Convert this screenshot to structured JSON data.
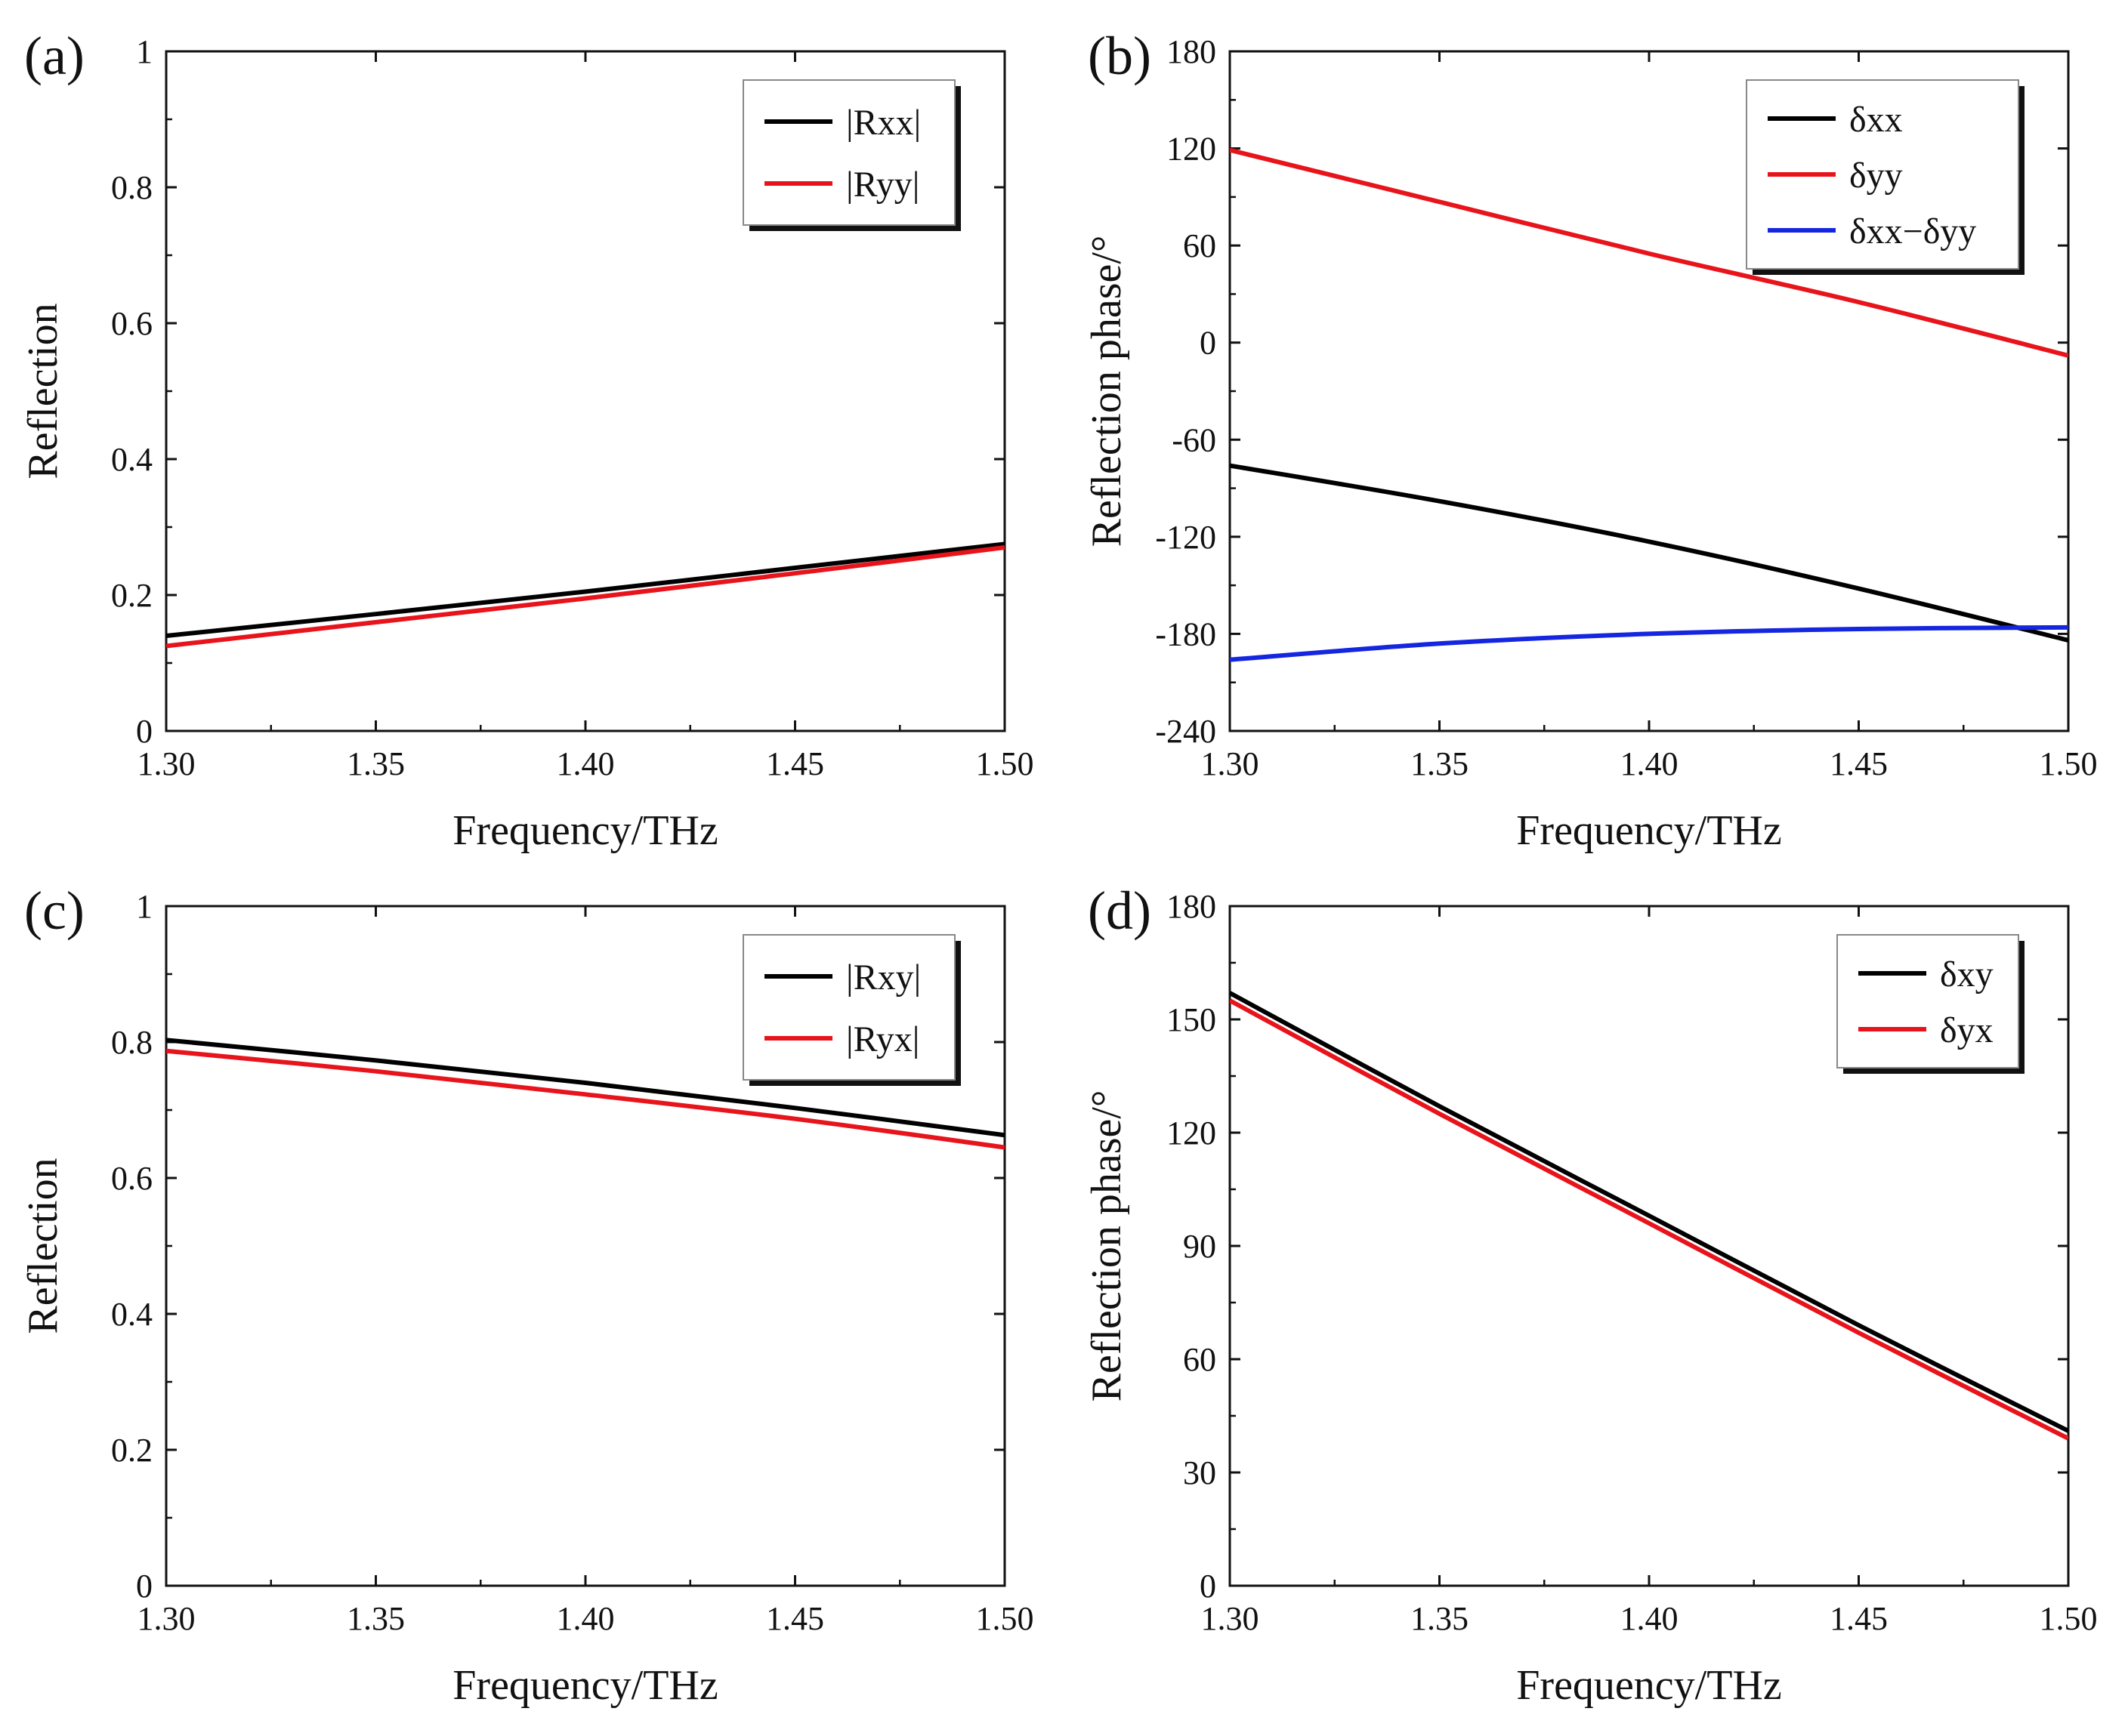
{
  "chart_data": [
    {
      "id": "a",
      "panel_label": "(a)",
      "type": "line",
      "xlabel": "Frequency/THz",
      "ylabel": "Reflection",
      "xlim": [
        1.3,
        1.5
      ],
      "ylim": [
        0,
        1
      ],
      "xticks": [
        1.3,
        1.35,
        1.4,
        1.45,
        1.5
      ],
      "xtick_labels": [
        "1.30",
        "1.35",
        "1.40",
        "1.45",
        "1.50"
      ],
      "yticks": [
        0,
        0.2,
        0.4,
        0.6,
        0.8,
        1
      ],
      "ytick_labels": [
        "0",
        "0.2",
        "0.4",
        "0.6",
        "0.8",
        "1"
      ],
      "legend_position": "top-right",
      "series": [
        {
          "name": "|Rxx|",
          "color": "#000000",
          "x": [
            1.3,
            1.35,
            1.4,
            1.45,
            1.5
          ],
          "y": [
            0.14,
            0.172,
            0.205,
            0.24,
            0.275
          ]
        },
        {
          "name": "|Ryy|",
          "color": "#e8141c",
          "x": [
            1.3,
            1.35,
            1.4,
            1.45,
            1.5
          ],
          "y": [
            0.125,
            0.16,
            0.195,
            0.232,
            0.27
          ]
        }
      ]
    },
    {
      "id": "b",
      "panel_label": "(b)",
      "type": "line",
      "xlabel": "Frequency/THz",
      "ylabel": "Reflection phase/°",
      "xlim": [
        1.3,
        1.5
      ],
      "ylim": [
        -240,
        180
      ],
      "xticks": [
        1.3,
        1.35,
        1.4,
        1.45,
        1.5
      ],
      "xtick_labels": [
        "1.30",
        "1.35",
        "1.40",
        "1.45",
        "1.50"
      ],
      "yticks": [
        -240,
        -180,
        -120,
        -60,
        0,
        60,
        120,
        180
      ],
      "ytick_labels": [
        "-240",
        "-180",
        "-120",
        "-60",
        "0",
        "60",
        "120",
        "180"
      ],
      "legend_position": "top-right",
      "series": [
        {
          "name": "δxx",
          "color": "#000000",
          "x": [
            1.3,
            1.35,
            1.4,
            1.45,
            1.5
          ],
          "y": [
            -76,
            -98,
            -123,
            -152,
            -184
          ]
        },
        {
          "name": "δyy",
          "color": "#e8141c",
          "x": [
            1.3,
            1.35,
            1.4,
            1.45,
            1.5
          ],
          "y": [
            119,
            87,
            55,
            25,
            -8
          ]
        },
        {
          "name": "δxx−δyy",
          "color": "#1526e0",
          "x": [
            1.3,
            1.35,
            1.4,
            1.45,
            1.5
          ],
          "y": [
            -196,
            -186,
            -180,
            -177,
            -176
          ]
        }
      ]
    },
    {
      "id": "c",
      "panel_label": "(c)",
      "type": "line",
      "xlabel": "Frequency/THz",
      "ylabel": "Reflection",
      "xlim": [
        1.3,
        1.5
      ],
      "ylim": [
        0,
        1
      ],
      "xticks": [
        1.3,
        1.35,
        1.4,
        1.45,
        1.5
      ],
      "xtick_labels": [
        "1.30",
        "1.35",
        "1.40",
        "1.45",
        "1.50"
      ],
      "yticks": [
        0,
        0.2,
        0.4,
        0.6,
        0.8,
        1
      ],
      "ytick_labels": [
        "0",
        "0.2",
        "0.4",
        "0.6",
        "0.8",
        "1"
      ],
      "legend_position": "top-right",
      "series": [
        {
          "name": "|Rxy|",
          "color": "#000000",
          "x": [
            1.3,
            1.35,
            1.4,
            1.45,
            1.5
          ],
          "y": [
            0.803,
            0.773,
            0.74,
            0.703,
            0.663
          ]
        },
        {
          "name": "|Ryx|",
          "color": "#e8141c",
          "x": [
            1.3,
            1.35,
            1.4,
            1.45,
            1.5
          ],
          "y": [
            0.787,
            0.757,
            0.723,
            0.687,
            0.645
          ]
        }
      ]
    },
    {
      "id": "d",
      "panel_label": "(d)",
      "type": "line",
      "xlabel": "Frequency/THz",
      "ylabel": "Reflection phase/°",
      "xlim": [
        1.3,
        1.5
      ],
      "ylim": [
        0,
        180
      ],
      "xticks": [
        1.3,
        1.35,
        1.4,
        1.45,
        1.5
      ],
      "xtick_labels": [
        "1.30",
        "1.35",
        "1.40",
        "1.45",
        "1.50"
      ],
      "yticks": [
        0,
        30,
        60,
        90,
        120,
        150,
        180
      ],
      "ytick_labels": [
        "0",
        "30",
        "60",
        "90",
        "120",
        "150",
        "180"
      ],
      "legend_position": "top-right",
      "series": [
        {
          "name": "δxy",
          "color": "#000000",
          "x": [
            1.3,
            1.35,
            1.4,
            1.45,
            1.5
          ],
          "y": [
            157,
            127,
            98,
            69,
            41
          ]
        },
        {
          "name": "δyx",
          "color": "#e8141c",
          "x": [
            1.3,
            1.35,
            1.4,
            1.45,
            1.5
          ],
          "y": [
            155,
            125,
            96,
            67,
            39
          ]
        }
      ]
    }
  ]
}
